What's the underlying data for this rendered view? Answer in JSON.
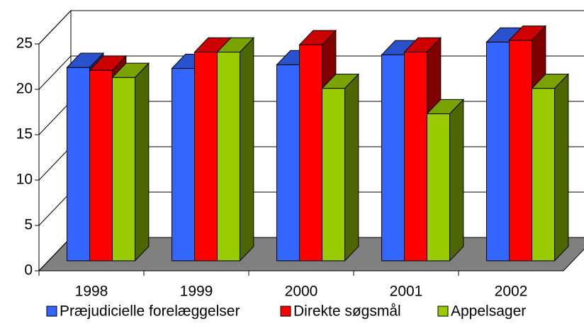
{
  "chart_data": {
    "type": "bar",
    "three_d": true,
    "categories": [
      "1998",
      "1999",
      "2000",
      "2001",
      "2002"
    ],
    "series": [
      {
        "name": "Præjudicielle forelæggelser",
        "color": "#3366ff",
        "values": [
          21.3,
          21.2,
          21.6,
          22.7,
          24.1
        ]
      },
      {
        "name": "Direkte søgsmål",
        "color": "#ff0000",
        "values": [
          21.0,
          23.0,
          23.8,
          23.0,
          24.3
        ]
      },
      {
        "name": "Appelsager",
        "color": "#99cc00",
        "values": [
          20.2,
          23.0,
          19.0,
          16.2,
          19.0
        ]
      }
    ],
    "ylim": [
      0,
      25
    ],
    "yticks": [
      0,
      5,
      10,
      15,
      20,
      25
    ],
    "grid": true,
    "legend": "bottom"
  }
}
